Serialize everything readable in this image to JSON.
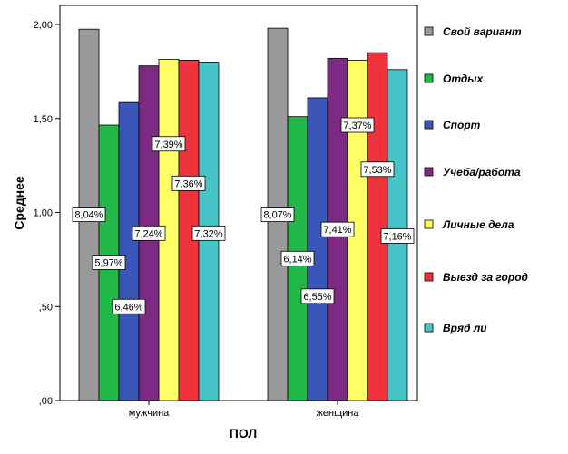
{
  "chart_data": {
    "type": "bar",
    "title": "",
    "xlabel": "ПОЛ",
    "ylabel": "Среднее",
    "ylim": [
      0,
      2
    ],
    "yticks": [
      0,
      0.5,
      1.0,
      1.5,
      2.0
    ],
    "ytick_labels": [
      ",00",
      ",50",
      "1,00",
      "1,50",
      "2,00"
    ],
    "grid": false,
    "legend_position": "right",
    "categories": [
      "мужчина",
      "женщина"
    ],
    "series": [
      {
        "name": "Свой вариант",
        "color": "#999999",
        "values": [
          1.975,
          1.98
        ],
        "labels": [
          "8,04%",
          "8,07%"
        ],
        "label_values": [
          0.99,
          0.99
        ]
      },
      {
        "name": "Отдых",
        "color": "#22b848",
        "values": [
          1.465,
          1.51
        ],
        "labels": [
          "5,97%",
          "6,14%"
        ],
        "label_values": [
          0.735,
          0.755
        ]
      },
      {
        "name": "Спорт",
        "color": "#3b55b8",
        "values": [
          1.585,
          1.61
        ],
        "labels": [
          "6,46%",
          "6,55%"
        ],
        "label_values": [
          0.5,
          0.555
        ]
      },
      {
        "name": "Учеба/работа",
        "color": "#7d2a82",
        "values": [
          1.78,
          1.82
        ],
        "labels": [
          "7,24%",
          "7,41%"
        ],
        "label_values": [
          0.89,
          0.91
        ]
      },
      {
        "name": "Личные дела",
        "color": "#ffff66",
        "values": [
          1.815,
          1.81
        ],
        "labels": [
          "7,39%",
          "7,37%"
        ],
        "label_values": [
          1.365,
          1.465
        ]
      },
      {
        "name": "Выезд за город",
        "color": "#f0323c",
        "values": [
          1.81,
          1.85
        ],
        "labels": [
          "7,36%",
          "7,53%"
        ],
        "label_values": [
          1.155,
          1.23
        ]
      },
      {
        "name": "Вряд ли",
        "color": "#46c4c8",
        "values": [
          1.8,
          1.76
        ],
        "labels": [
          "7,32%",
          "7,16%"
        ],
        "label_values": [
          0.89,
          0.875
        ]
      }
    ]
  }
}
